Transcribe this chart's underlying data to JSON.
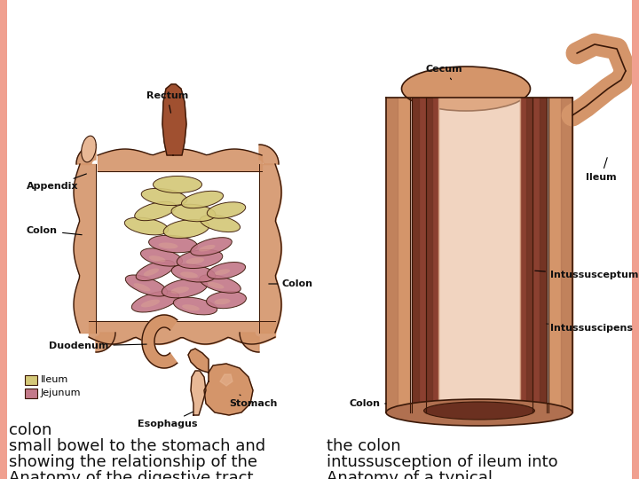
{
  "background_color": "#ffffff",
  "left_border_color": "#f0a090",
  "right_border_color": "#f0a090",
  "left_caption": [
    "Anatomy of the digestive tract",
    "showing the relationship of the",
    "small bowel to the stomach and",
    "colon"
  ],
  "right_caption": [
    "Anatomy of a typical",
    "intussusception of ileum into",
    "the colon"
  ],
  "caption_fontsize": 13,
  "caption_color": "#111111",
  "label_fontsize": 8,
  "label_color": "#111111",
  "colors": {
    "peach": "#D4956A",
    "peach_light": "#E8B896",
    "peach_very_light": "#EDD5B8",
    "pink_jejunum": "#C47A8A",
    "yellow_ileum": "#D4C878",
    "colon_pink": "#D4956A",
    "dark_brown": "#6B3020",
    "medium_brown": "#8B4030",
    "light_brown": "#C07050",
    "outline": "#3a1808",
    "stomach_peach": "#CD8860",
    "rectum_brown": "#A05030",
    "shadow": "#B07050"
  }
}
